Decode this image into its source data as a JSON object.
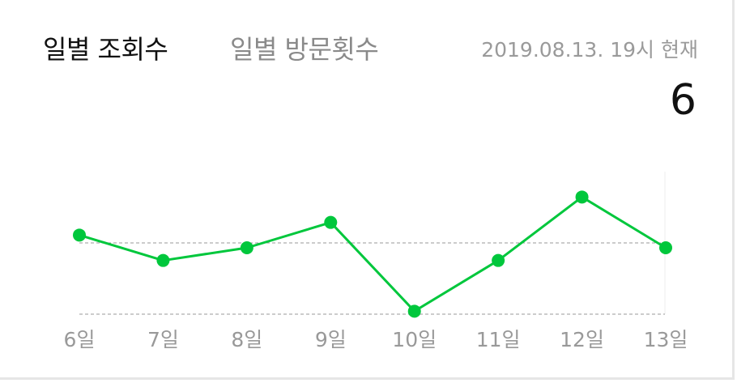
{
  "tabs": [
    {
      "label": "일별 조회수",
      "active": true
    },
    {
      "label": "일별 방문횟수",
      "active": false
    }
  ],
  "timestamp": "2019.08.13. 19시 현재",
  "total": "6",
  "colors": {
    "accent": "#00c73c",
    "inactive_tab": "#8a8a8a",
    "axis_label": "#999999"
  },
  "chart_data": {
    "type": "line",
    "categories": [
      "6일",
      "7일",
      "8일",
      "9일",
      "10일",
      "11일",
      "12일",
      "13일"
    ],
    "series": [
      {
        "values": [
          7,
          5,
          6,
          8,
          1,
          5,
          10,
          6
        ]
      }
    ],
    "ylim": [
      0,
      12
    ],
    "grid": "dashed horizontal reference lines"
  }
}
